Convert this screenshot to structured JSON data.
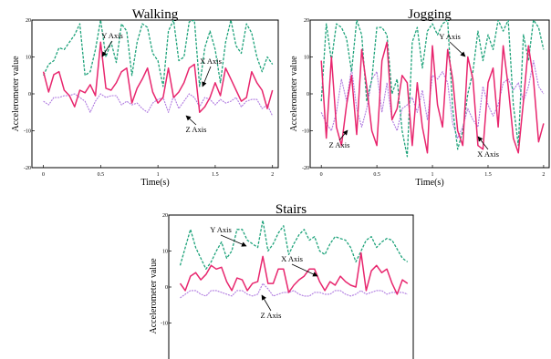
{
  "colors": {
    "x": "#e8266e",
    "y": "#1fa37b",
    "z": "#b07be0"
  },
  "chart_data": [
    {
      "type": "line",
      "title": "Walking",
      "xlabel": "Time(s)",
      "ylabel": "Accelerometer value",
      "xlim": [
        -0.1,
        2.05
      ],
      "ylim": [
        -20,
        20
      ],
      "xticks": [
        "0",
        "0.5",
        "1",
        "1.5",
        "2"
      ],
      "yticks": [
        "20",
        "10",
        "0",
        "-10",
        "-20"
      ],
      "grid": false,
      "annotations": [
        "Y Axis",
        "X Axis",
        "Z Axis"
      ],
      "series": [
        {
          "name": "X Axis",
          "values": [
            6.0,
            0.5,
            5.2,
            6.0,
            1.0,
            -0.5,
            -3.5,
            1.0,
            0.3,
            2.5,
            -0.5,
            14.0,
            1.5,
            1.0,
            3.0,
            6.0,
            7.0,
            -2.5,
            1.5,
            4.0,
            7.0,
            0.5,
            -2.5,
            -1.0,
            7.0,
            -1.0,
            0.5,
            3.0,
            7.0,
            8.0,
            -5.0,
            -3.5,
            -1.0,
            3.0,
            -0.5,
            7.0,
            4.0,
            1.0,
            -2.0,
            -1.0,
            6.0,
            3.0,
            1.0,
            -4.0,
            1.0
          ]
        },
        {
          "name": "Y Axis",
          "values": [
            5.0,
            8.0,
            9.0,
            12.5,
            12.0,
            14.0,
            16.0,
            19.0,
            5.0,
            6.0,
            12.0,
            20.0,
            10.0,
            14.0,
            8.5,
            19.0,
            17.0,
            5.0,
            14.0,
            19.0,
            18.0,
            11.0,
            9.0,
            2.0,
            17.0,
            20.0,
            9.0,
            10.0,
            19.5,
            20.0,
            2.0,
            12.5,
            17.0,
            12.0,
            3.0,
            14.0,
            20.0,
            13.0,
            11.0,
            19.0,
            16.5,
            10.0,
            6.0,
            10.0,
            8.0
          ]
        },
        {
          "name": "Z Axis",
          "values": [
            -2.0,
            -3.0,
            -1.0,
            -1.0,
            -0.5,
            -0.5,
            0.0,
            -1.0,
            -2.0,
            -5.0,
            -2.0,
            0.0,
            -1.0,
            -0.5,
            -0.5,
            -3.0,
            -2.0,
            -3.0,
            -2.5,
            -4.0,
            -5.0,
            -2.5,
            -1.5,
            -1.0,
            -5.0,
            -0.5,
            -4.0,
            -2.0,
            0.0,
            -1.0,
            -3.5,
            -1.0,
            -1.5,
            -3.0,
            -1.5,
            -2.5,
            -2.0,
            -1.0,
            -3.5,
            -2.0,
            -1.5,
            -1.5,
            -4.0,
            -3.0,
            -6.0
          ]
        }
      ]
    },
    {
      "type": "line",
      "title": "Jogging",
      "xlabel": "Time(s)",
      "ylabel": "Accelerometer value",
      "xlim": [
        -0.1,
        2.05
      ],
      "ylim": [
        -20,
        20
      ],
      "xticks": [
        "0",
        "0.5",
        "1",
        "1.5",
        "2"
      ],
      "yticks": [
        "20",
        "10",
        "0",
        "-10",
        "-20"
      ],
      "grid": false,
      "annotations": [
        "Y Axis",
        "Z Axis",
        "X Axis"
      ],
      "series": [
        {
          "name": "X Axis",
          "values": [
            9.0,
            -12.0,
            10.0,
            -9.0,
            -14.0,
            -3.0,
            5.0,
            -11.0,
            12.0,
            2.0,
            -10.0,
            -14.0,
            9.0,
            14.0,
            -7.0,
            -4.0,
            5.0,
            3.0,
            -14.0,
            3.0,
            -9.0,
            -16.0,
            13.0,
            -3.0,
            -9.0,
            12.0,
            4.0,
            -10.0,
            -14.0,
            10.0,
            4.0,
            -14.0,
            -15.0,
            3.0,
            7.0,
            -9.0,
            13.0,
            2.0,
            -12.0,
            -16.0,
            -2.0,
            13.0,
            4.0,
            -13.0,
            -8.0
          ]
        },
        {
          "name": "Y Axis",
          "values": [
            -2.0,
            19.0,
            9.0,
            19.0,
            18.0,
            15.0,
            6.0,
            20.0,
            16.0,
            -2.0,
            4.0,
            18.0,
            18.0,
            16.0,
            0.0,
            4.0,
            -10.0,
            -17.0,
            14.0,
            18.0,
            7.0,
            17.0,
            19.0,
            16.0,
            19.0,
            20.0,
            -4.0,
            -15.0,
            -10.0,
            0.0,
            6.0,
            17.0,
            9.0,
            16.0,
            12.0,
            20.0,
            17.0,
            20.0,
            -3.0,
            -14.0,
            16.0,
            9.0,
            20.0,
            18.0,
            12.0
          ]
        },
        {
          "name": "Z Axis",
          "values": [
            -5.0,
            -8.0,
            -10.0,
            -5.0,
            4.0,
            -2.0,
            7.0,
            -4.0,
            -9.0,
            -4.0,
            4.0,
            6.0,
            -5.0,
            3.0,
            -7.0,
            -10.0,
            -4.0,
            -3.0,
            -1.0,
            -5.0,
            1.0,
            -7.0,
            5.0,
            4.0,
            6.0,
            3.0,
            -8.0,
            -12.0,
            -9.0,
            -4.0,
            -7.0,
            -9.0,
            2.0,
            -3.0,
            -6.0,
            -3.0,
            3.0,
            4.0,
            1.0,
            3.0,
            -2.0,
            2.0,
            9.0,
            2.0,
            0.0
          ]
        }
      ]
    },
    {
      "type": "line",
      "title": "Stairs",
      "xlabel": "",
      "ylabel": "Accelerometer value",
      "xlim": [
        -0.1,
        2.05
      ],
      "ylim": [
        -20,
        20
      ],
      "xticks": [],
      "yticks": [
        "20",
        "10",
        "0",
        "-10",
        "-20"
      ],
      "grid": false,
      "annotations": [
        "Y Axis",
        "X Axis",
        "Z Axis"
      ],
      "series": [
        {
          "name": "X Axis",
          "values": [
            1.0,
            -1.0,
            3.0,
            4.0,
            2.0,
            3.5,
            6.0,
            5.0,
            5.5,
            1.5,
            -1.0,
            2.5,
            2.0,
            -1.0,
            1.0,
            1.5,
            8.5,
            1.0,
            1.0,
            5.0,
            5.0,
            -1.5,
            0.5,
            2.0,
            3.0,
            5.0,
            5.0,
            1.5,
            -1.0,
            1.5,
            0.5,
            3.0,
            1.5,
            0.5,
            0.0,
            9.5,
            -1.0,
            4.5,
            6.0,
            4.0,
            5.0,
            1.0,
            -2.0,
            2.0,
            1.0
          ]
        },
        {
          "name": "Y Axis",
          "values": [
            6.0,
            11.0,
            16.0,
            11.0,
            8.0,
            5.0,
            7.0,
            10.0,
            12.5,
            8.0,
            10.0,
            16.0,
            16.0,
            13.0,
            12.0,
            11.0,
            18.5,
            10.0,
            12.0,
            15.0,
            17.0,
            9.0,
            12.0,
            14.5,
            16.0,
            13.0,
            14.0,
            10.0,
            9.0,
            12.0,
            14.0,
            13.5,
            13.0,
            11.0,
            7.0,
            10.0,
            13.0,
            14.0,
            11.0,
            12.5,
            13.5,
            13.0,
            10.5,
            8.0,
            7.0
          ]
        },
        {
          "name": "Z Axis",
          "values": [
            -3.0,
            -2.0,
            -1.0,
            -1.0,
            -2.0,
            -2.5,
            -1.0,
            -1.0,
            -1.5,
            -2.0,
            -2.5,
            -1.0,
            -1.0,
            -2.0,
            -2.5,
            -2.0,
            1.0,
            -0.5,
            -2.5,
            -2.0,
            -1.5,
            -1.5,
            -1.0,
            -2.0,
            -2.5,
            -2.5,
            -1.5,
            -1.5,
            -2.0,
            -2.0,
            -1.0,
            -1.0,
            -2.0,
            -2.5,
            -2.0,
            -1.0,
            -2.0,
            -1.5,
            -1.0,
            -1.0,
            -2.0,
            -1.5,
            -1.5,
            -1.5,
            -2.0
          ]
        }
      ]
    }
  ]
}
